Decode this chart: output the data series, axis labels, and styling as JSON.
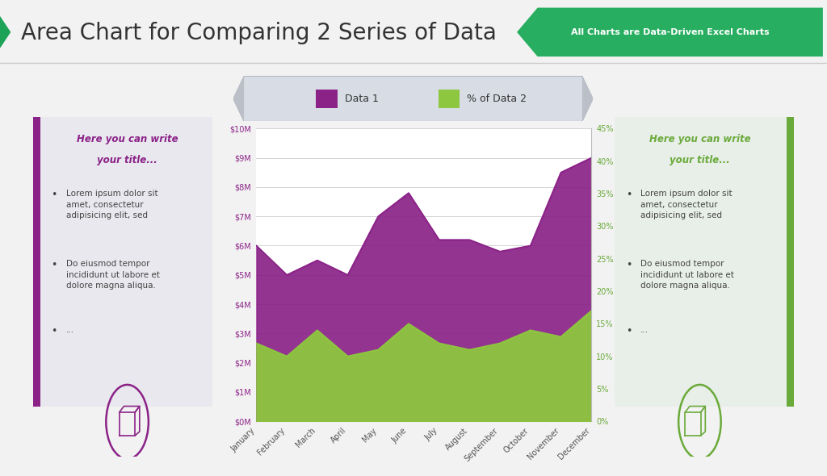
{
  "title": "Area Chart for Comparing 2 Series of Data",
  "subtitle": "All Charts are Data-Driven Excel Charts",
  "title_color": "#333333",
  "title_fontsize": 20,
  "months": [
    "January",
    "February",
    "March",
    "April",
    "May",
    "June",
    "July",
    "August",
    "September",
    "October",
    "November",
    "December"
  ],
  "data1": [
    6000000,
    5000000,
    5500000,
    5000000,
    7000000,
    7800000,
    6200000,
    6200000,
    5800000,
    6000000,
    8500000,
    9000000
  ],
  "data2_pct": [
    12,
    10,
    14,
    10,
    11,
    15,
    12,
    11,
    12,
    14,
    13,
    17
  ],
  "data1_color": "#8B2288",
  "data2_color": "#8DC63F",
  "ylim_left": [
    0,
    10000000
  ],
  "ylim_right": [
    0,
    45
  ],
  "yticks_left": [
    0,
    1000000,
    2000000,
    3000000,
    4000000,
    5000000,
    6000000,
    7000000,
    8000000,
    9000000,
    10000000
  ],
  "yticks_right": [
    0,
    5,
    10,
    15,
    20,
    25,
    30,
    35,
    40,
    45
  ],
  "panel_bg": "#e8e8ee",
  "panel_border_color": "#8B2288",
  "panel_title_color": "#8B2288",
  "panel_text_color": "#444444",
  "right_panel_title_color": "#6aaa3a",
  "right_panel_bg": "#e8eee8",
  "right_panel_border_color": "#6aaa3a",
  "legend_data1": "Data 1",
  "legend_data2": "% of Data 2",
  "grid_color": "#cccccc",
  "axis_label_color": "#8B2288",
  "right_axis_color": "#6aaa3a",
  "slide_bg": "#f2f2f2",
  "white": "#ffffff",
  "green_badge": "#27ae60",
  "left_arrow_green": "#1da357"
}
